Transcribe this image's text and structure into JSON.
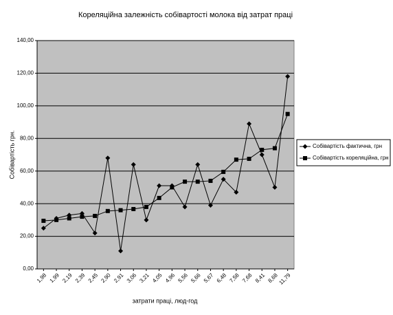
{
  "chart_data": {
    "type": "line",
    "title": "Кореляційна залежність собівартості молока від затрат праці",
    "xlabel": "затрати праці, люд-год",
    "ylabel": "Собівартість  грн.",
    "categories": [
      "1,98",
      "1,99",
      "2,19",
      "2,39",
      "2,45",
      "2,90",
      "2,91",
      "3,06",
      "3,21",
      "4,05",
      "4,96",
      "5,56",
      "5,66",
      "5,67",
      "6,48",
      "7,58",
      "7,68",
      "8,41",
      "8,68",
      "11,79"
    ],
    "series": [
      {
        "name": "Собівартість фактична, грн",
        "color": "#000000",
        "marker": "diamond",
        "values": [
          25,
          31,
          33,
          34,
          22,
          68,
          11,
          64,
          30,
          51,
          51,
          38,
          64,
          39,
          55,
          47,
          89,
          70,
          50,
          118
        ]
      },
      {
        "name": "Собівартість кореляційна, грн",
        "color": "#000000",
        "marker": "square",
        "values": [
          29.5,
          30,
          31,
          32,
          32.5,
          35.5,
          36,
          36.7,
          38,
          43.5,
          50,
          53.5,
          53.5,
          54,
          59.5,
          67,
          67.5,
          73,
          74,
          95
        ]
      }
    ],
    "ylim": [
      0,
      140
    ],
    "yticks": [
      {
        "value": 0,
        "label": "0,00"
      },
      {
        "value": 20,
        "label": "20,00"
      },
      {
        "value": 40,
        "label": "40,00"
      },
      {
        "value": 60,
        "label": "60,00"
      },
      {
        "value": 80,
        "label": "80,00"
      },
      {
        "value": 100,
        "label": "100,00"
      },
      {
        "value": 120,
        "label": "120,00"
      },
      {
        "value": 140,
        "label": "140,00"
      }
    ],
    "grid": true,
    "legend": "right",
    "plot_background": "#c0c0c0"
  }
}
